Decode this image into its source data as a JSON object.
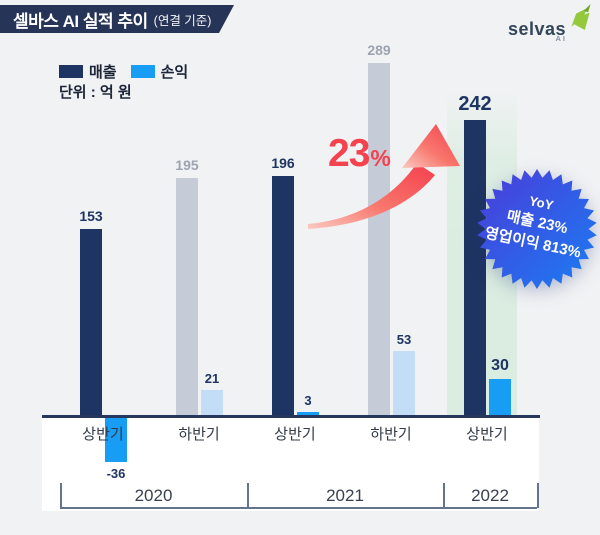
{
  "header": {
    "title": "셀바스 AI 실적 추이",
    "subtitle": "(연결 기준)"
  },
  "logo": {
    "brand": "selvas",
    "sub": "AI"
  },
  "legend": {
    "items": [
      {
        "label": "매출",
        "color": "#1e3462"
      },
      {
        "label": "손익",
        "color": "#189df4"
      }
    ]
  },
  "unit_label": "단위 : 억 원",
  "growth": {
    "value": "23",
    "percent_sign": "%"
  },
  "badge": {
    "lines": [
      "YoY",
      "매출 23%",
      "영업이익 813%"
    ]
  },
  "colors": {
    "revenue": "#1e3462",
    "revenue_muted": "#c6cbd8",
    "profit": "#189df4",
    "profit_muted": "#c3ddf6",
    "accent_red": "#f4424e",
    "highlight_green": "#dbede1",
    "badge_gradient_start": "#4b3bd9",
    "badge_gradient_end": "#1a7df2",
    "banner_navy": "#263457"
  },
  "chart_data": {
    "type": "bar",
    "title": "셀바스 AI 실적 추이 (연결 기준)",
    "unit": "억 원",
    "categories": [
      "2020 상반기",
      "2020 하반기",
      "2021 상반기",
      "2021 하반기",
      "2022 상반기"
    ],
    "period_labels": [
      "상반기",
      "하반기",
      "상반기",
      "하반기",
      "상반기"
    ],
    "year_groups": [
      {
        "label": "2020",
        "span": 2
      },
      {
        "label": "2021",
        "span": 2
      },
      {
        "label": "2022",
        "span": 1
      }
    ],
    "series": [
      {
        "name": "매출",
        "values": [
          153,
          195,
          196,
          289,
          242
        ]
      },
      {
        "name": "손익",
        "values": [
          -36,
          21,
          3,
          53,
          30
        ]
      }
    ],
    "highlight_group": "2022 상반기",
    "annotations": {
      "growth": "23%",
      "badge": "YoY 매출 23% 영업이익 813%"
    },
    "legend_position": "top-left",
    "grid": false
  }
}
